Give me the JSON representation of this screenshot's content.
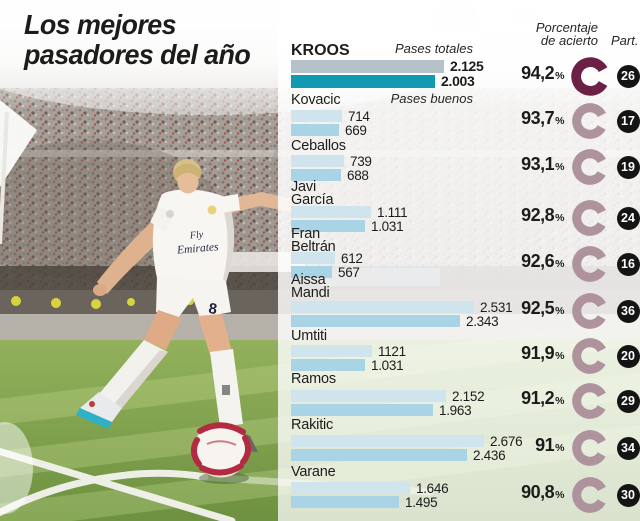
{
  "title": {
    "line1": "Los mejores",
    "line2": "pasadores del año"
  },
  "header": {
    "pases_totales": "Pases totales",
    "pases_buenos": "Pases buenos",
    "porcentaje_line1": "Porcentaje",
    "porcentaje_line2": "de acierto",
    "part": "Part."
  },
  "photo": {
    "jersey_sponsor_line1": "Fly",
    "jersey_sponsor_line2": "Emirates",
    "shorts_number": "8"
  },
  "colors": {
    "bar_totales": "#d0e4ee",
    "bar_buenos": "#a8d4e5",
    "kroos_bar_totales": "#b6c2c9",
    "kroos_bar_buenos": "#129ab3",
    "ring_normal": "#ae929c",
    "ring_highlight": "#6d2045",
    "badge_bg": "#141414",
    "badge_text": "#ffffff",
    "text_dark": "#1c1c1a"
  },
  "chart_data": {
    "type": "bar",
    "orientation": "horizontal",
    "title": "Los mejores pasadores del año",
    "series_labels": [
      "Pases totales",
      "Pases buenos"
    ],
    "value_axis_max": 2676,
    "percent_sign": "%",
    "legend_position": "top-inline",
    "players": [
      {
        "name_lines": [
          "KROOS"
        ],
        "highlight": true,
        "pases_totales": {
          "display": "2.125",
          "value": 2125
        },
        "pases_buenos": {
          "display": "2.003",
          "value": 2003
        },
        "porcentaje_acierto": "94,2",
        "partidos": "26"
      },
      {
        "name_lines": [
          "Kovacic"
        ],
        "highlight": false,
        "pases_totales": {
          "display": "714",
          "value": 714
        },
        "pases_buenos": {
          "display": "669",
          "value": 669
        },
        "porcentaje_acierto": "93,7",
        "partidos": "17"
      },
      {
        "name_lines": [
          "Ceballos"
        ],
        "highlight": false,
        "pases_totales": {
          "display": "739",
          "value": 739
        },
        "pases_buenos": {
          "display": "688",
          "value": 688
        },
        "porcentaje_acierto": "93,1",
        "partidos": "19"
      },
      {
        "name_lines": [
          "Javi",
          "García"
        ],
        "highlight": false,
        "pases_totales": {
          "display": "1.111",
          "value": 1111
        },
        "pases_buenos": {
          "display": "1.031",
          "value": 1031
        },
        "porcentaje_acierto": "92,8",
        "partidos": "24"
      },
      {
        "name_lines": [
          "Fran",
          "Beltrán"
        ],
        "highlight": false,
        "pases_totales": {
          "display": "612",
          "value": 612
        },
        "pases_buenos": {
          "display": "567",
          "value": 567
        },
        "porcentaje_acierto": "92,6",
        "partidos": "16"
      },
      {
        "name_lines": [
          "Aissa",
          "Mandi"
        ],
        "highlight": false,
        "pases_totales": {
          "display": "2.531",
          "value": 2531
        },
        "pases_buenos": {
          "display": "2.343",
          "value": 2343
        },
        "porcentaje_acierto": "92,5",
        "partidos": "36"
      },
      {
        "name_lines": [
          "Umtiti"
        ],
        "highlight": false,
        "pases_totales": {
          "display": "1121",
          "value": 1121
        },
        "pases_buenos": {
          "display": "1.031",
          "value": 1031
        },
        "porcentaje_acierto": "91,9",
        "partidos": "20"
      },
      {
        "name_lines": [
          "Ramos"
        ],
        "highlight": false,
        "pases_totales": {
          "display": "2.152",
          "value": 2152
        },
        "pases_buenos": {
          "display": "1.963",
          "value": 1963
        },
        "porcentaje_acierto": "91,2",
        "partidos": "29"
      },
      {
        "name_lines": [
          "Rakitic"
        ],
        "highlight": false,
        "pases_totales": {
          "display": "2.676",
          "value": 2676
        },
        "pases_buenos": {
          "display": "2.436",
          "value": 2436
        },
        "porcentaje_acierto": "91",
        "partidos": "34"
      },
      {
        "name_lines": [
          "Varane"
        ],
        "highlight": false,
        "pases_totales": {
          "display": "1.646",
          "value": 1646
        },
        "pases_buenos": {
          "display": "1.495",
          "value": 1495
        },
        "porcentaje_acierto": "90,8",
        "partidos": "30"
      }
    ]
  }
}
